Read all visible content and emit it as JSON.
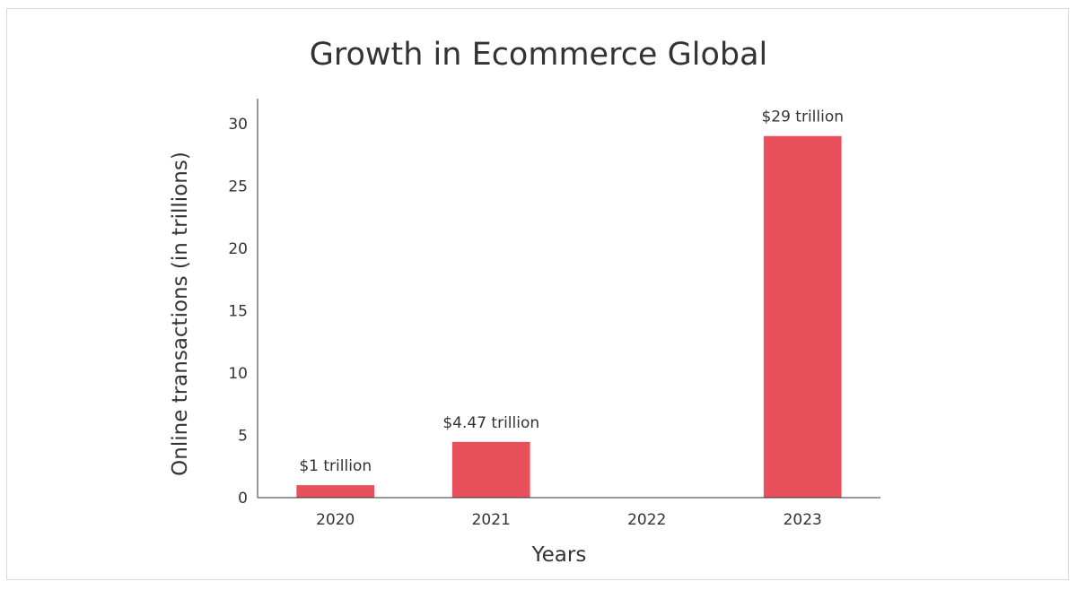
{
  "chart_data": {
    "type": "bar",
    "title": "Growth in Ecommerce Global",
    "xlabel": "Years",
    "ylabel": "Online transactions (in trillions)",
    "categories": [
      "2020",
      "2021",
      "2022",
      "2023"
    ],
    "values": [
      1,
      4.47,
      0,
      29
    ],
    "data_labels": [
      "$1 trillion",
      "$4.47 trillion",
      "",
      "$29 trillion"
    ],
    "ylim": [
      0,
      32
    ],
    "yticks": [
      0,
      5,
      10,
      15,
      20,
      25,
      30
    ],
    "grid": false,
    "legend": "none",
    "bar_color": "#e8505b",
    "text_color": "#333333"
  }
}
